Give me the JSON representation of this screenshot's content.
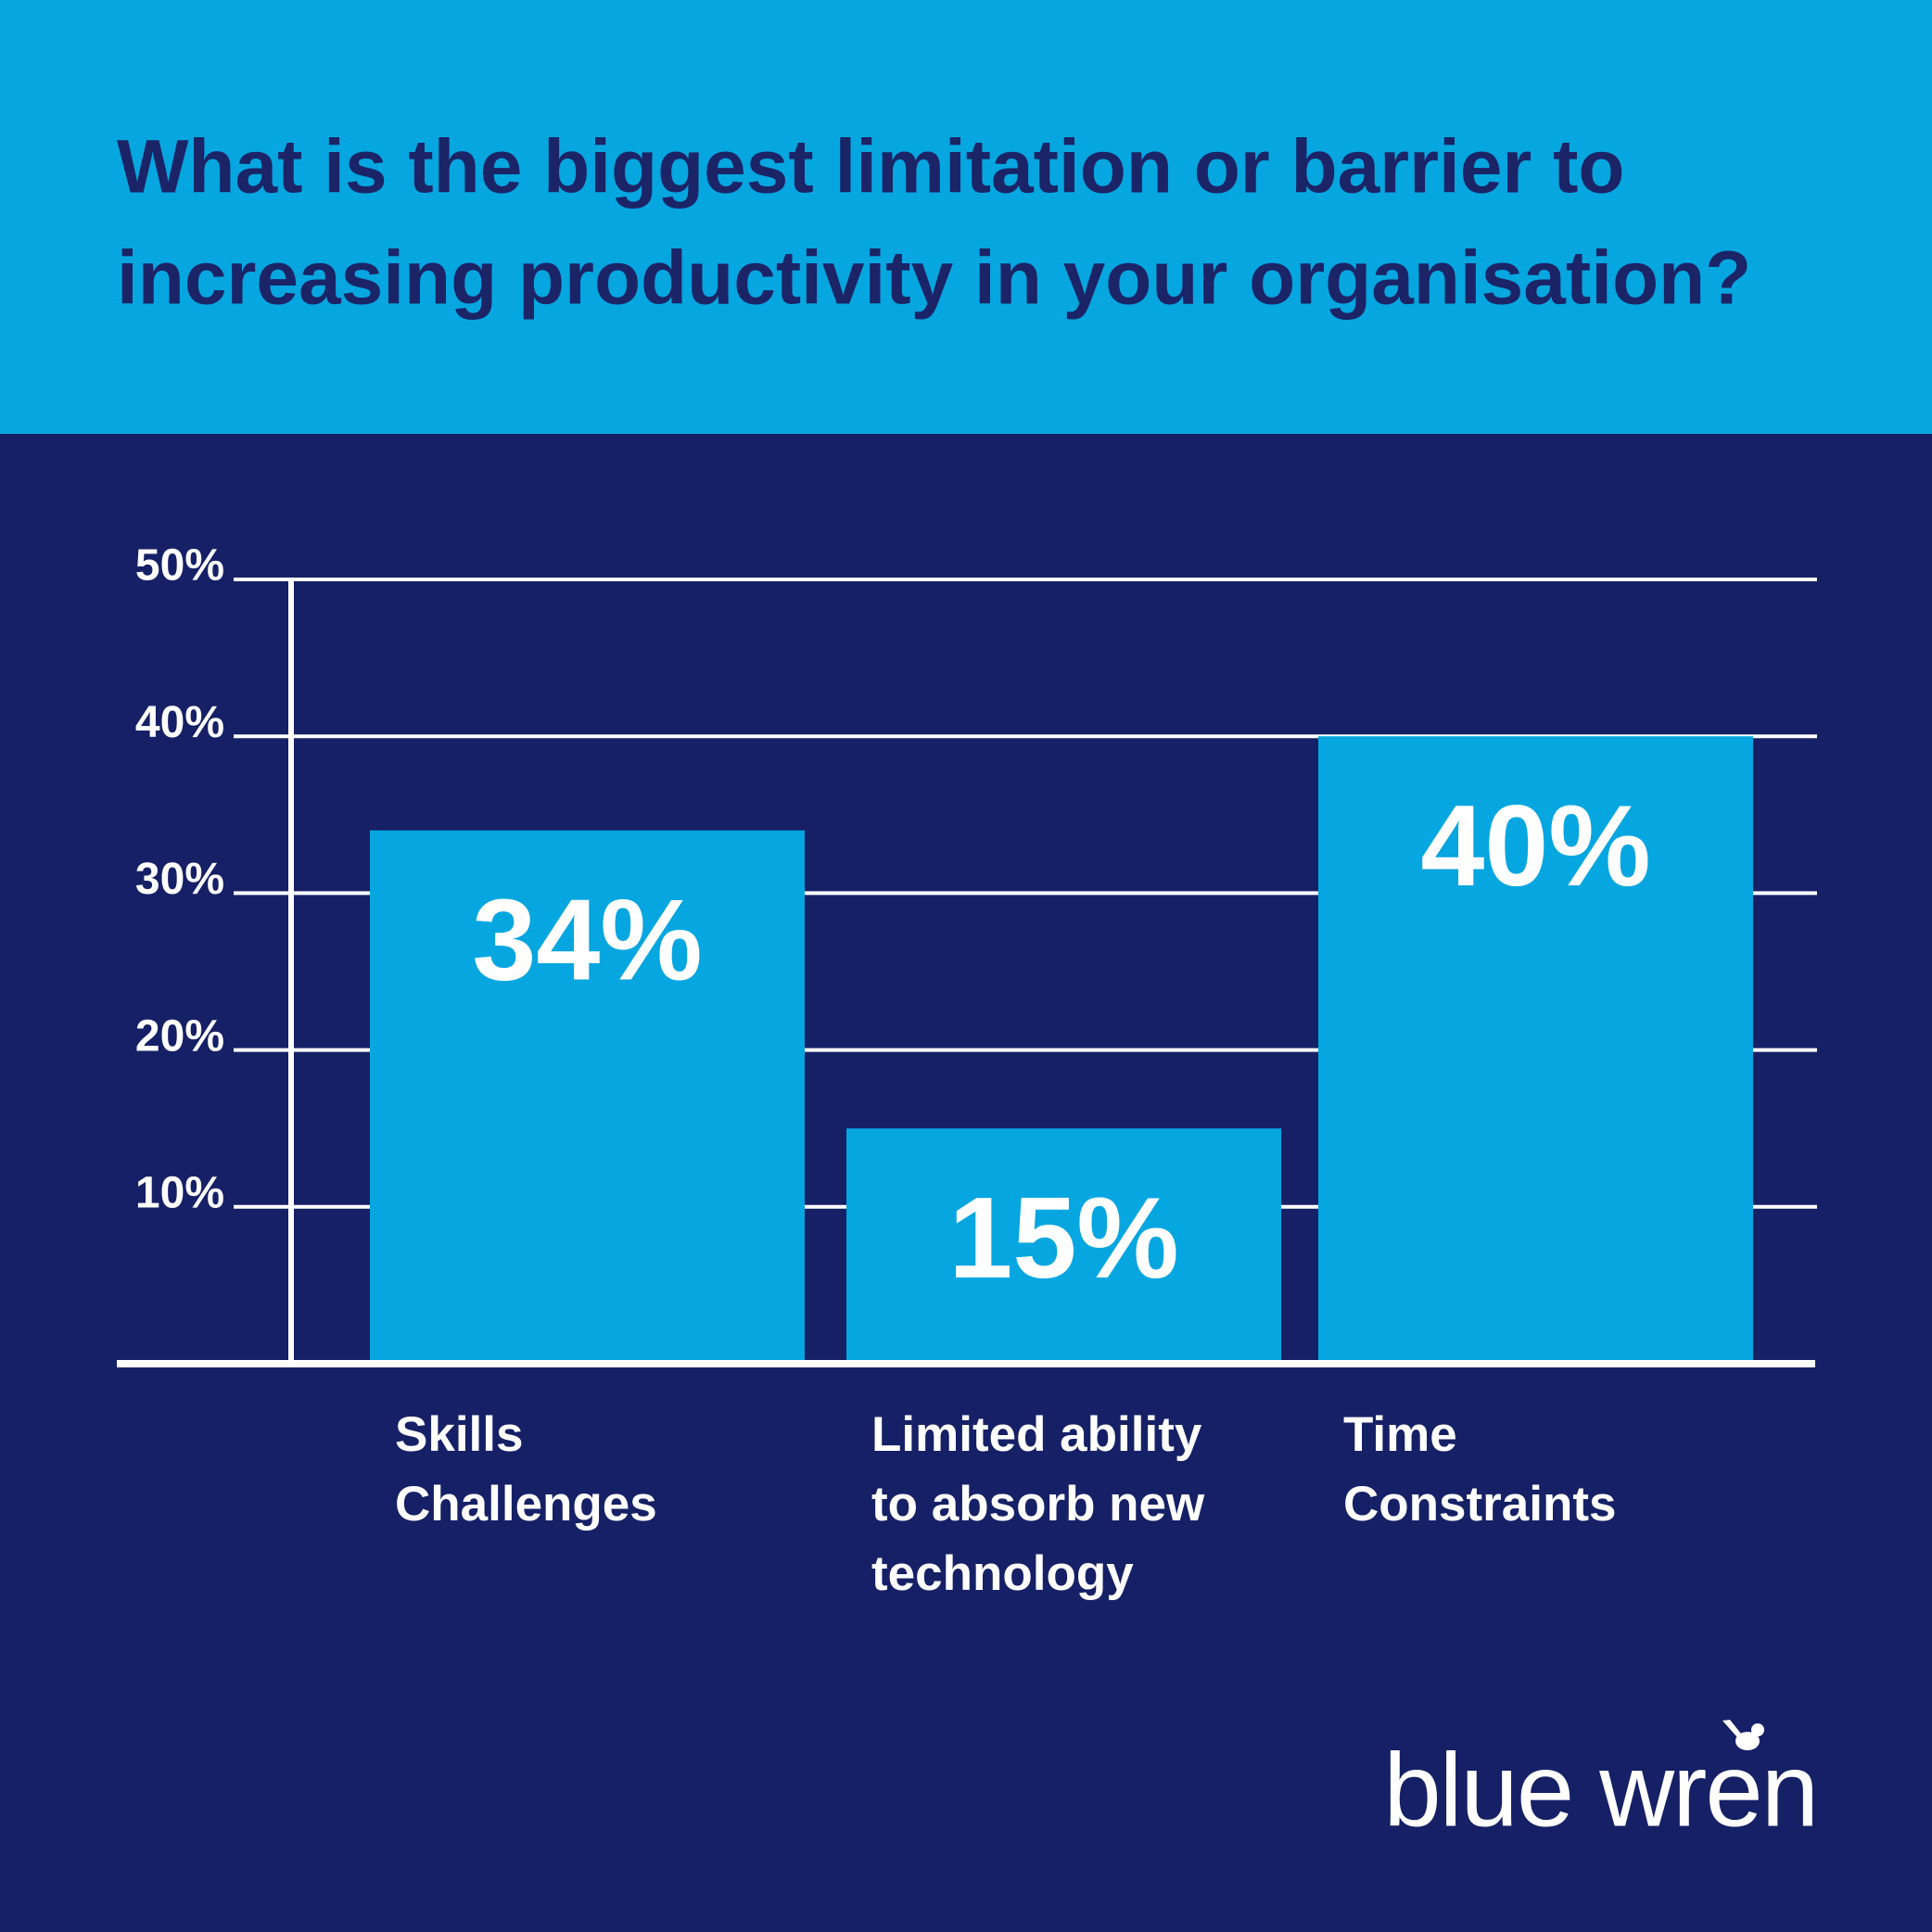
{
  "chart_data": {
    "type": "bar",
    "title": [
      "What is the biggest limitation or barrier to",
      "increasing productivity in your organisation?"
    ],
    "categories": [
      [
        "Skills",
        "Challenges"
      ],
      [
        "Limited ability",
        "to absorb new",
        "technology"
      ],
      [
        "Time",
        "Constraints"
      ]
    ],
    "values": [
      34,
      15,
      40
    ],
    "value_labels": [
      "34%",
      "15%",
      "40%"
    ],
    "color": "#06a6e0",
    "ylim": [
      0,
      50
    ],
    "yticks": [
      {
        "value": 10,
        "label": "10%"
      },
      {
        "value": 20,
        "label": "20%"
      },
      {
        "value": 30,
        "label": "30%"
      },
      {
        "value": 40,
        "label": "40%"
      },
      {
        "value": 50,
        "label": "50%"
      }
    ],
    "grid": true
  },
  "logo": "blue wren"
}
